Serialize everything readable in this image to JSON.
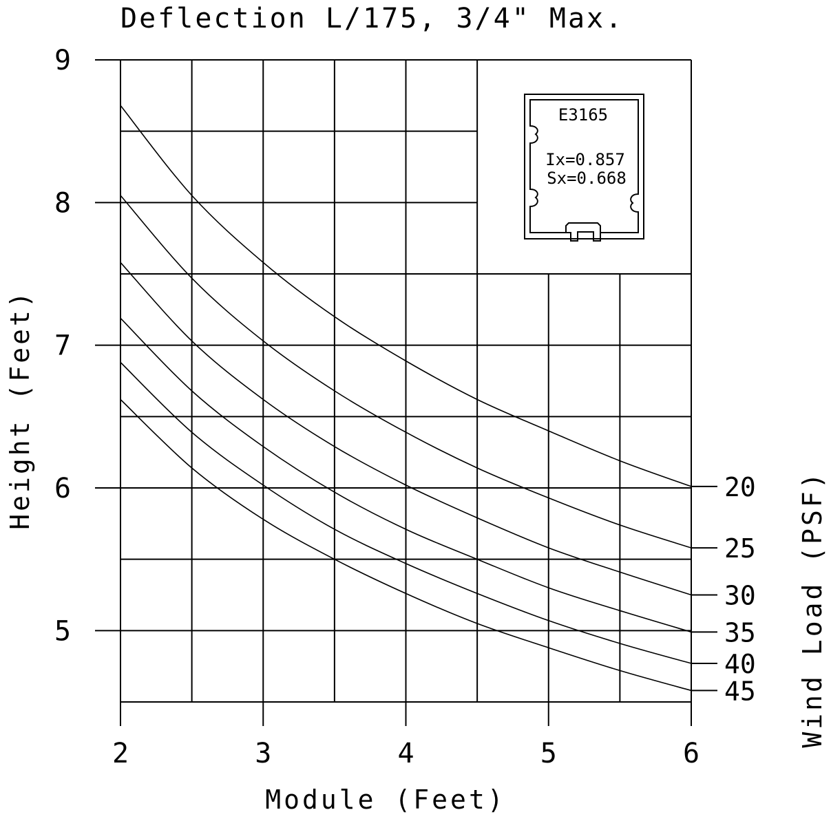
{
  "chart_data": {
    "type": "line",
    "title": "Deflection L/175, 3/4\" Max.",
    "xlabel": "Module (Feet)",
    "ylabel": "Height (Feet)",
    "y2label": "Wind Load (PSF)",
    "xlim": [
      2,
      6
    ],
    "ylim": [
      4.5,
      9
    ],
    "xticks": [
      "2",
      "3",
      "4",
      "5",
      "6"
    ],
    "yticks": [
      "5",
      "6",
      "7",
      "8",
      "9"
    ],
    "x": [
      2,
      2.5,
      3,
      3.5,
      4,
      4.5,
      5,
      5.5,
      6
    ],
    "series": [
      {
        "name": "20",
        "values": [
          8.68,
          8.05,
          7.58,
          7.2,
          6.89,
          6.62,
          6.4,
          6.19,
          6.01
        ]
      },
      {
        "name": "25",
        "values": [
          8.05,
          7.47,
          7.03,
          6.68,
          6.39,
          6.14,
          5.93,
          5.74,
          5.58
        ]
      },
      {
        "name": "30",
        "values": [
          7.58,
          7.03,
          6.62,
          6.29,
          6.02,
          5.79,
          5.58,
          5.41,
          5.25
        ]
      },
      {
        "name": "35",
        "values": [
          7.19,
          6.68,
          6.29,
          5.97,
          5.71,
          5.5,
          5.3,
          5.14,
          4.99
        ]
      },
      {
        "name": "40",
        "values": [
          6.88,
          6.39,
          6.02,
          5.71,
          5.47,
          5.26,
          5.07,
          4.91,
          4.77
        ]
      },
      {
        "name": "45",
        "values": [
          6.62,
          6.14,
          5.78,
          5.5,
          5.26,
          5.05,
          4.88,
          4.72,
          4.58
        ]
      }
    ],
    "grid": true,
    "inset": {
      "profile": "E3165",
      "ix": "Ix=0.857",
      "sx": "Sx=0.668"
    }
  }
}
